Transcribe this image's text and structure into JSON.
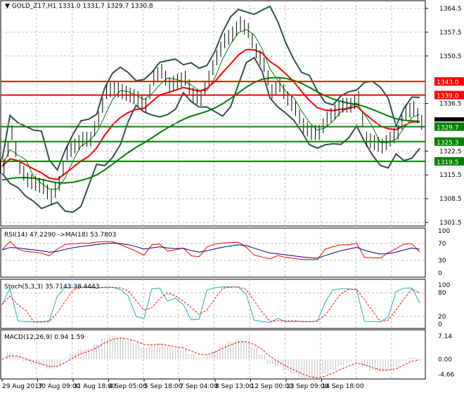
{
  "header": {
    "symbol": "GOLD_Z17,H1",
    "ohlc": "1331.0 1331.7 1329.7 1330.8"
  },
  "chart_data": [
    {
      "type": "line",
      "title": "GOLD_Z17,H1",
      "ylim": [
        1301.5,
        1364.5
      ],
      "y_ticks": [
        1364.5,
        1357.5,
        1350.5,
        1336.5,
        1322.5,
        1315.5,
        1308.5,
        1301.5
      ],
      "x_ticks": [
        "29 Aug 2017",
        "30 Aug 09:00",
        "31 Aug 18:00",
        "4 Sep 05:00",
        "5 Sep 18:00",
        "7 Sep 04:00",
        "8 Sep 13:00",
        "12 Sep 00:00",
        "13 Sep 09:00",
        "14 Sep 18:00"
      ],
      "close": [
        1318,
        1328,
        1318,
        1314,
        1313,
        1312,
        1309,
        1313,
        1322,
        1324,
        1326,
        1326,
        1332,
        1340,
        1341,
        1340,
        1339,
        1338,
        1336,
        1344,
        1346,
        1342,
        1343,
        1344,
        1339,
        1338,
        1344,
        1350,
        1355,
        1357,
        1360,
        1358,
        1352,
        1348,
        1340,
        1342,
        1338,
        1335,
        1330,
        1328,
        1328,
        1332,
        1334,
        1336,
        1336,
        1338,
        1326,
        1325,
        1324,
        1326,
        1328,
        1334,
        1335,
        1331
      ],
      "levels": [
        {
          "value": "1343.0",
          "color": "#ff0000"
        },
        {
          "value": "1339.0",
          "color": "#ff0000"
        },
        {
          "value": "1329.7",
          "color": "#008000"
        },
        {
          "value": "1325.3",
          "color": "#008000"
        },
        {
          "value": "1319.5",
          "color": "#008000"
        }
      ],
      "current": "1330.8",
      "grid": true
    },
    {
      "type": "line",
      "title": "RSI(14) 47.2290  ->MA(18) 53.7803",
      "ylim": [
        0,
        100
      ],
      "y_ticks": [
        "100",
        "70",
        "30",
        "0"
      ]
    },
    {
      "type": "line",
      "title": "Stoch(5,3,3) 35.7143 38.4443",
      "ylim": [
        0,
        100
      ],
      "y_ticks": [
        "100",
        "80",
        "20",
        "0"
      ]
    },
    {
      "type": "bar",
      "title": "MACD(12,26,9) 0.94 1.59",
      "ylim": [
        -4.66,
        7.14
      ],
      "y_ticks": [
        "7.14",
        "0.00",
        "-4.66"
      ]
    }
  ],
  "colors": {
    "ma_fast": "#ff0000",
    "ma_slow": "#008000",
    "bands": "#2f4f4f",
    "rsi": "#ff0000",
    "rsi_ma": "#000080",
    "stoch_main": "#20b2aa",
    "stoch_signal": "#ff0000",
    "macd_hist": "#c0c0c0"
  }
}
